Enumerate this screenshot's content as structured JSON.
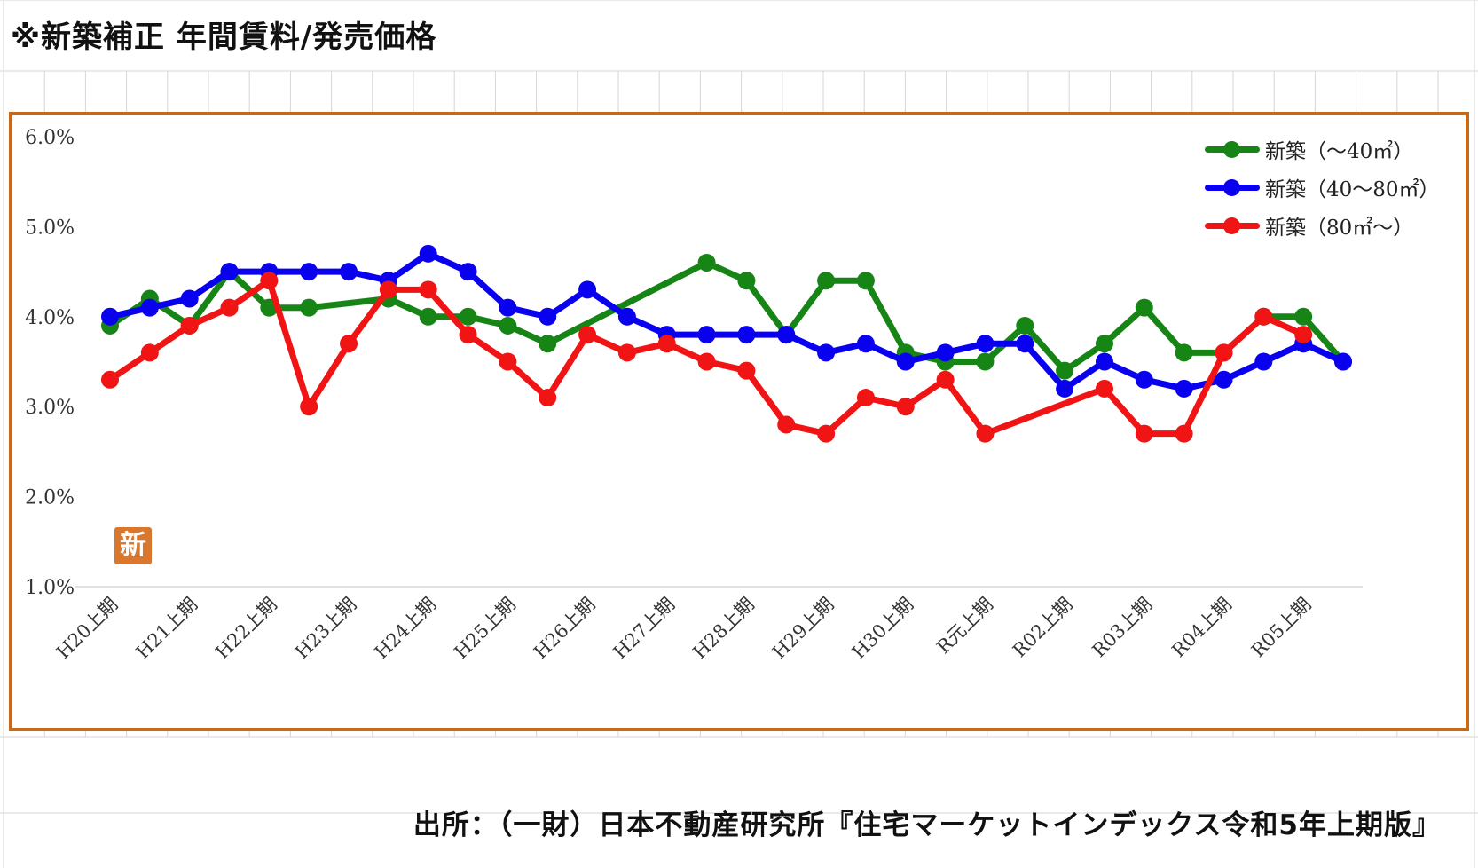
{
  "page": {
    "title": "※新築補正 年間賃料/発売価格",
    "source": "出所：（一財）日本不動産研究所『住宅マーケットインデックス令和5年上期版』",
    "badge": "新",
    "frame_color": "#C8691A",
    "badge_color": "#D9772F"
  },
  "chart_data": {
    "type": "line",
    "ylim": [
      1.0,
      6.0
    ],
    "y_ticks": [
      "1.0%",
      "2.0%",
      "3.0%",
      "4.0%",
      "5.0%",
      "6.0%"
    ],
    "y_tick_values": [
      1.0,
      2.0,
      3.0,
      4.0,
      5.0,
      6.0
    ],
    "x_tick_labels": [
      "H20上期",
      "H21上期",
      "H22上期",
      "H23上期",
      "H24上期",
      "H25上期",
      "H26上期",
      "H27上期",
      "H28上期",
      "H29上期",
      "H30上期",
      "R元上期",
      "R02上期",
      "R03上期",
      "R04上期",
      "R05上期"
    ],
    "grid": "horizontal baseline only",
    "legend_position": "top-right",
    "series": [
      {
        "name": "新築（～40㎡）",
        "color": "#168516",
        "points": [
          [
            0,
            3.9
          ],
          [
            1,
            4.2
          ],
          [
            2,
            3.9
          ],
          [
            3,
            4.5
          ],
          [
            4,
            4.1
          ],
          [
            5,
            4.1
          ],
          [
            7,
            4.2
          ],
          [
            8,
            4.0
          ],
          [
            9,
            4.0
          ],
          [
            10,
            3.9
          ],
          [
            11,
            3.7
          ],
          [
            15,
            4.6
          ],
          [
            16,
            4.4
          ],
          [
            17,
            3.8
          ],
          [
            18,
            4.4
          ],
          [
            19,
            4.4
          ],
          [
            20,
            3.6
          ],
          [
            21,
            3.5
          ],
          [
            22,
            3.5
          ],
          [
            23,
            3.9
          ],
          [
            24,
            3.4
          ],
          [
            25,
            3.7
          ],
          [
            26,
            4.1
          ],
          [
            27,
            3.6
          ],
          [
            28,
            3.6
          ],
          [
            29,
            4.0
          ],
          [
            30,
            4.0
          ],
          [
            31,
            3.5
          ]
        ]
      },
      {
        "name": "新築（40～80㎡）",
        "color": "#0A00F0",
        "points": [
          [
            0,
            4.0
          ],
          [
            1,
            4.1
          ],
          [
            2,
            4.2
          ],
          [
            3,
            4.5
          ],
          [
            4,
            4.5
          ],
          [
            5,
            4.5
          ],
          [
            6,
            4.5
          ],
          [
            7,
            4.4
          ],
          [
            8,
            4.7
          ],
          [
            9,
            4.5
          ],
          [
            10,
            4.1
          ],
          [
            11,
            4.0
          ],
          [
            12,
            4.3
          ],
          [
            13,
            4.0
          ],
          [
            14,
            3.8
          ],
          [
            15,
            3.8
          ],
          [
            16,
            3.8
          ],
          [
            17,
            3.8
          ],
          [
            18,
            3.6
          ],
          [
            19,
            3.7
          ],
          [
            20,
            3.5
          ],
          [
            21,
            3.6
          ],
          [
            22,
            3.7
          ],
          [
            23,
            3.7
          ],
          [
            24,
            3.2
          ],
          [
            25,
            3.5
          ],
          [
            26,
            3.3
          ],
          [
            27,
            3.2
          ],
          [
            28,
            3.3
          ],
          [
            29,
            3.5
          ],
          [
            30,
            3.7
          ],
          [
            31,
            3.5
          ]
        ]
      },
      {
        "name": "新築（80㎡～）",
        "color": "#F01414",
        "points": [
          [
            0,
            3.3
          ],
          [
            1,
            3.6
          ],
          [
            2,
            3.9
          ],
          [
            3,
            4.1
          ],
          [
            4,
            4.4
          ],
          [
            5,
            3.0
          ],
          [
            6,
            3.7
          ],
          [
            7,
            4.3
          ],
          [
            8,
            4.3
          ],
          [
            9,
            3.8
          ],
          [
            10,
            3.5
          ],
          [
            11,
            3.1
          ],
          [
            12,
            3.8
          ],
          [
            13,
            3.6
          ],
          [
            14,
            3.7
          ],
          [
            15,
            3.5
          ],
          [
            16,
            3.4
          ],
          [
            17,
            2.8
          ],
          [
            18,
            2.7
          ],
          [
            19,
            3.1
          ],
          [
            20,
            3.0
          ],
          [
            21,
            3.3
          ],
          [
            22,
            2.7
          ],
          [
            25,
            3.2
          ],
          [
            26,
            2.7
          ],
          [
            27,
            2.7
          ],
          [
            28,
            3.6
          ],
          [
            29,
            4.0
          ],
          [
            30,
            3.8
          ]
        ]
      }
    ]
  }
}
